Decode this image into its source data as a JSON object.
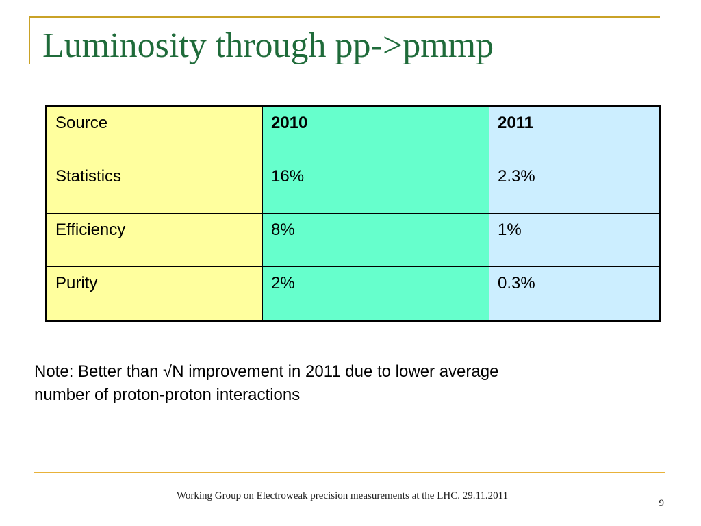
{
  "slide": {
    "title": "Luminosity through pp->pmmp",
    "table": {
      "headers": [
        "Source",
        "2010",
        "2011"
      ],
      "rows": [
        [
          "Statistics",
          "16%",
          "2.3%"
        ],
        [
          "Efficiency",
          "8%",
          "1%"
        ],
        [
          "Purity",
          "2%",
          "0.3%"
        ]
      ],
      "colors": {
        "source_column": "#ffff9e",
        "column_2010": "#66ffcc",
        "column_2011": "#cceeff"
      }
    },
    "note": {
      "line1": "Note:  Better than √N improvement in 2011 due to lower average",
      "line2": "number of proton-proton interactions"
    },
    "footer": {
      "text": "Working Group on Electroweak precision measurements at the LHC.  29.11.2011",
      "page_number": "9"
    },
    "accent_colors": {
      "title": "#1f6b3a",
      "frame": "#c9a227",
      "footer_rule": "#e8b23a"
    }
  }
}
